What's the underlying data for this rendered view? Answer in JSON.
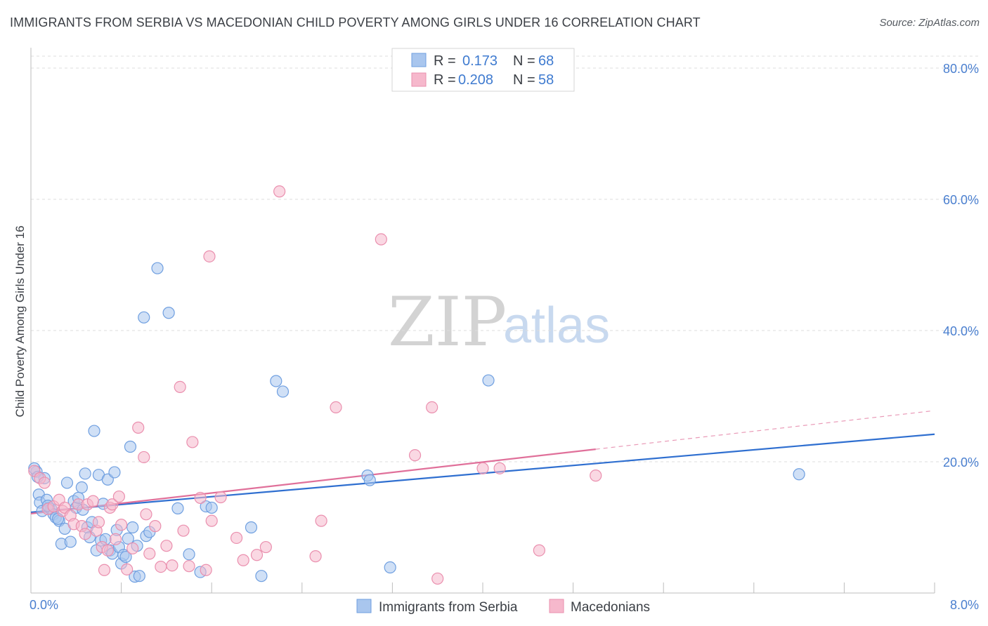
{
  "title": "IMMIGRANTS FROM SERBIA VS MACEDONIAN CHILD POVERTY AMONG GIRLS UNDER 16 CORRELATION CHART",
  "source": "Source: ZipAtlas.com",
  "colors": {
    "blue_fill": "#a9c6ee",
    "blue_stroke": "#6f9fe0",
    "blue_line": "#2f6fd0",
    "pink_fill": "#f6b8cc",
    "pink_stroke": "#ea8fae",
    "pink_line": "#e0709a",
    "grid": "#dddddd",
    "axis_text": "#4a7fcf"
  },
  "legend": {
    "rows": [
      {
        "r_label": "R =",
        "r_value": "0.173",
        "n_label": "N =",
        "n_value": "68"
      },
      {
        "r_label": "R =",
        "r_value": "0.208",
        "n_label": "N =",
        "n_value": "58"
      }
    ]
  },
  "bottom_legend": [
    "Immigrants from Serbia",
    "Macedonians"
  ],
  "watermark": {
    "zip": "ZIP",
    "atlas": "atlas"
  },
  "chart_data": {
    "type": "scatter",
    "title": "IMMIGRANTS FROM SERBIA VS MACEDONIAN CHILD POVERTY AMONG GIRLS UNDER 16 CORRELATION CHART",
    "xlabel": "",
    "ylabel": "Child Poverty Among Girls Under 16",
    "xlim": [
      0,
      8
    ],
    "ylim": [
      0,
      80
    ],
    "x_tick_labels": [
      "0.0%",
      "8.0%"
    ],
    "y_ticks": [
      20,
      40,
      60,
      80
    ],
    "y_tick_labels": [
      "20.0%",
      "40.0%",
      "60.0%",
      "80.0%"
    ],
    "grid": true,
    "series": [
      {
        "name": "Immigrants from Serbia",
        "color": "#a9c6ee",
        "r": 0.173,
        "n": 68,
        "trend": {
          "x": [
            0,
            8
          ],
          "y": [
            12.3,
            24.2
          ],
          "solid_to": 8
        },
        "points": [
          [
            0.05,
            18.5
          ],
          [
            0.07,
            15
          ],
          [
            0.08,
            13.8
          ],
          [
            0.1,
            12.5
          ],
          [
            0.12,
            17.5
          ],
          [
            0.14,
            14.2
          ],
          [
            0.16,
            13
          ],
          [
            0.18,
            12.8
          ],
          [
            0.2,
            12
          ],
          [
            0.22,
            11.5
          ],
          [
            0.25,
            11
          ],
          [
            0.27,
            7.5
          ],
          [
            0.3,
            9.8
          ],
          [
            0.32,
            16.8
          ],
          [
            0.35,
            7.8
          ],
          [
            0.38,
            14
          ],
          [
            0.4,
            13
          ],
          [
            0.42,
            14.5
          ],
          [
            0.45,
            16.1
          ],
          [
            0.48,
            18.2
          ],
          [
            0.5,
            10
          ],
          [
            0.52,
            8.5
          ],
          [
            0.54,
            10.8
          ],
          [
            0.56,
            24.7
          ],
          [
            0.58,
            6.5
          ],
          [
            0.6,
            18
          ],
          [
            0.62,
            8
          ],
          [
            0.64,
            13.6
          ],
          [
            0.66,
            8.2
          ],
          [
            0.68,
            17.3
          ],
          [
            0.7,
            6.5
          ],
          [
            0.72,
            6
          ],
          [
            0.74,
            18.4
          ],
          [
            0.76,
            9.6
          ],
          [
            0.78,
            7
          ],
          [
            0.8,
            4.5
          ],
          [
            0.82,
            5.8
          ],
          [
            0.84,
            5.5
          ],
          [
            0.86,
            8.3
          ],
          [
            0.88,
            22.3
          ],
          [
            0.9,
            10
          ],
          [
            0.92,
            2.5
          ],
          [
            0.94,
            7.2
          ],
          [
            0.96,
            2.6
          ],
          [
            1.0,
            42
          ],
          [
            1.02,
            8.7
          ],
          [
            1.05,
            9.3
          ],
          [
            1.12,
            49.5
          ],
          [
            1.22,
            42.7
          ],
          [
            1.3,
            12.9
          ],
          [
            1.4,
            5.9
          ],
          [
            1.5,
            3.2
          ],
          [
            1.55,
            13.2
          ],
          [
            1.6,
            13
          ],
          [
            1.95,
            10
          ],
          [
            2.04,
            2.6
          ],
          [
            2.17,
            32.3
          ],
          [
            2.23,
            30.7
          ],
          [
            2.98,
            17.9
          ],
          [
            3.0,
            17.2
          ],
          [
            3.18,
            3.9
          ],
          [
            4.05,
            32.4
          ],
          [
            6.8,
            18.1
          ],
          [
            0.03,
            19
          ],
          [
            0.06,
            17.7
          ],
          [
            0.15,
            13.3
          ],
          [
            0.24,
            11.3
          ],
          [
            0.46,
            12.7
          ]
        ]
      },
      {
        "name": "Macedonians",
        "color": "#f6b8cc",
        "r": 0.208,
        "n": 58,
        "trend": {
          "x": [
            0,
            8
          ],
          "y": [
            12.1,
            27.8
          ],
          "solid_to": 5.0
        },
        "points": [
          [
            0.03,
            18.6
          ],
          [
            0.08,
            17.5
          ],
          [
            0.12,
            16.8
          ],
          [
            0.15,
            12.8
          ],
          [
            0.2,
            13.2
          ],
          [
            0.25,
            14.2
          ],
          [
            0.28,
            12.5
          ],
          [
            0.3,
            13
          ],
          [
            0.35,
            11.8
          ],
          [
            0.38,
            10.5
          ],
          [
            0.42,
            13.5
          ],
          [
            0.45,
            10.2
          ],
          [
            0.48,
            9
          ],
          [
            0.5,
            13.5
          ],
          [
            0.55,
            14
          ],
          [
            0.58,
            9.5
          ],
          [
            0.6,
            10.8
          ],
          [
            0.63,
            7
          ],
          [
            0.65,
            3.5
          ],
          [
            0.68,
            6.5
          ],
          [
            0.7,
            13
          ],
          [
            0.72,
            13.5
          ],
          [
            0.75,
            8.2
          ],
          [
            0.78,
            14.7
          ],
          [
            0.8,
            10.4
          ],
          [
            0.85,
            3.6
          ],
          [
            0.9,
            6.8
          ],
          [
            0.95,
            25.2
          ],
          [
            1.0,
            20.7
          ],
          [
            1.02,
            12
          ],
          [
            1.05,
            6
          ],
          [
            1.1,
            10.2
          ],
          [
            1.15,
            4
          ],
          [
            1.2,
            7.2
          ],
          [
            1.25,
            4.2
          ],
          [
            1.32,
            31.4
          ],
          [
            1.35,
            9.5
          ],
          [
            1.4,
            4.1
          ],
          [
            1.43,
            23
          ],
          [
            1.5,
            14.5
          ],
          [
            1.55,
            3.5
          ],
          [
            1.58,
            51.3
          ],
          [
            1.6,
            11
          ],
          [
            1.68,
            14.6
          ],
          [
            1.82,
            8.4
          ],
          [
            1.88,
            5
          ],
          [
            2.0,
            5.8
          ],
          [
            2.08,
            7
          ],
          [
            2.2,
            61.2
          ],
          [
            2.52,
            5.6
          ],
          [
            2.57,
            11
          ],
          [
            2.7,
            28.3
          ],
          [
            3.1,
            53.9
          ],
          [
            3.4,
            21
          ],
          [
            3.55,
            28.3
          ],
          [
            4.0,
            19
          ],
          [
            4.15,
            19
          ],
          [
            5.0,
            17.9
          ]
        ]
      }
    ],
    "extra_points": {
      "Macedonians": [
        [
          3.6,
          2.2
        ],
        [
          4.5,
          6.5
        ]
      ]
    }
  }
}
